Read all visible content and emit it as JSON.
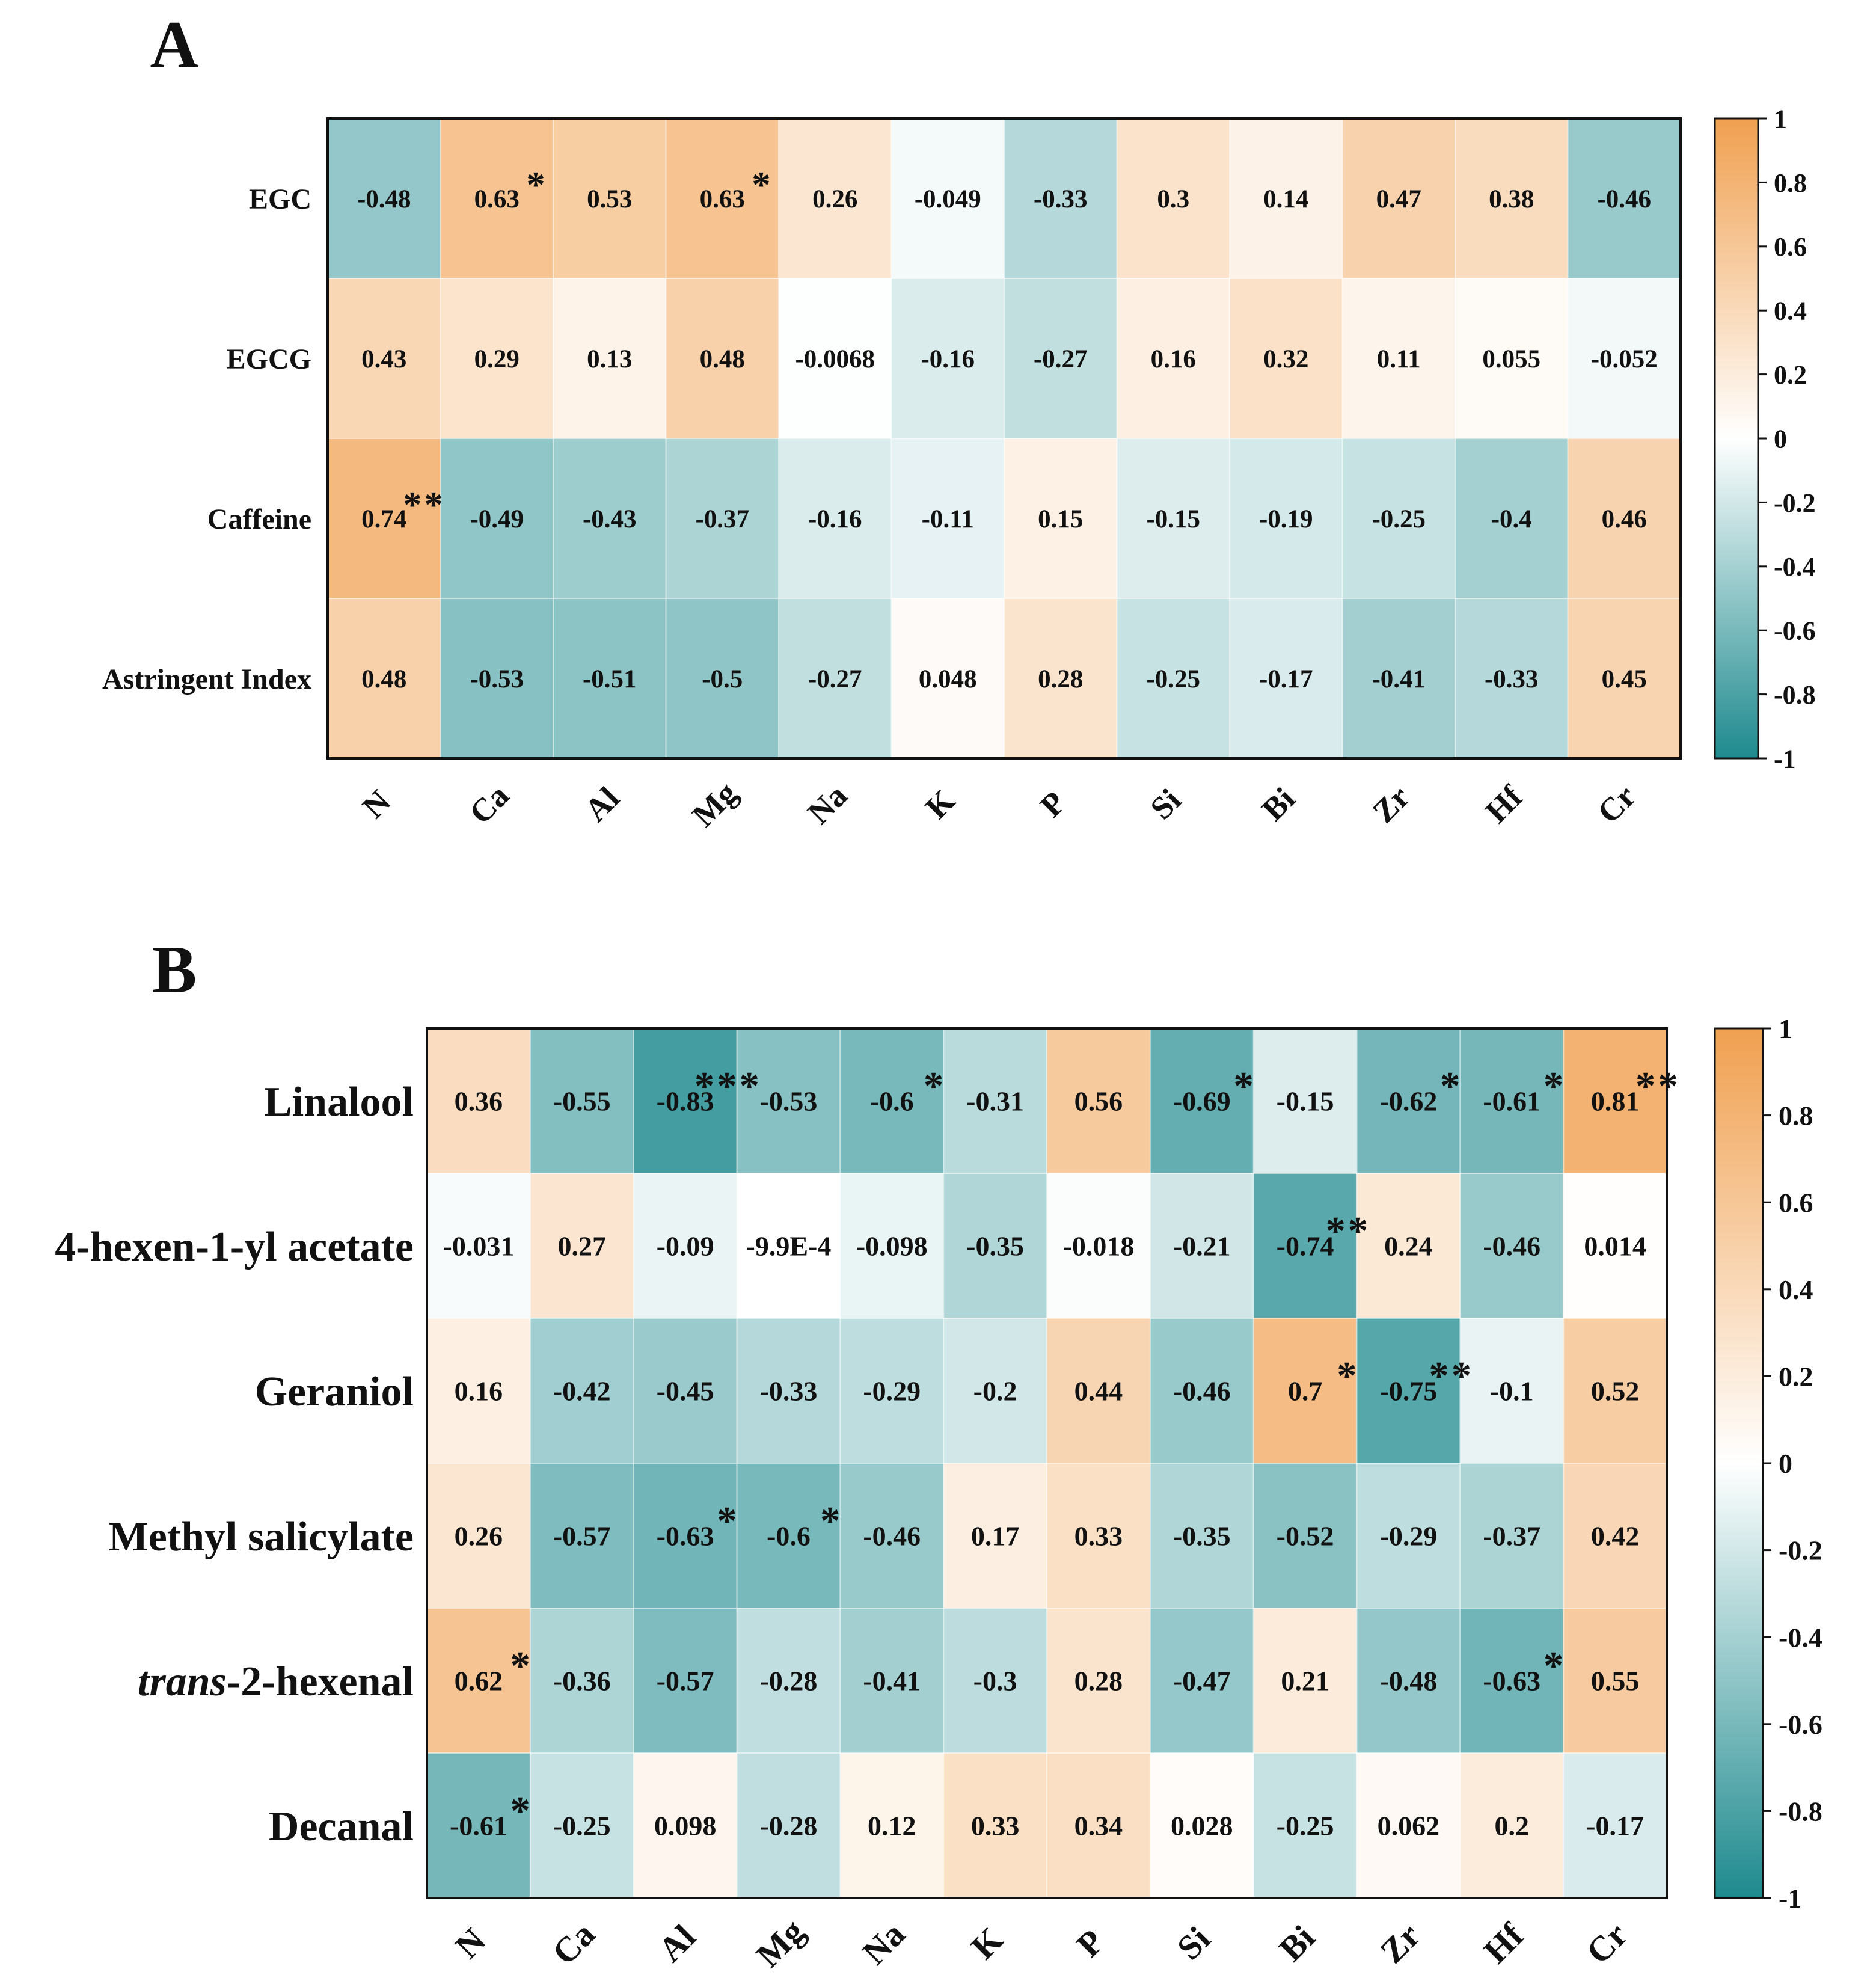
{
  "chart_data": [
    {
      "type": "heatmap",
      "panel_label": "A",
      "columns": [
        "N",
        "Ca",
        "Al",
        "Mg",
        "Na",
        "K",
        "P",
        "Si",
        "Bi",
        "Zr",
        "Hf",
        "Cr"
      ],
      "rows": [
        {
          "label": "EGC",
          "italic_prefix": "",
          "values": [
            -0.48,
            0.63,
            0.53,
            0.63,
            0.26,
            -0.049,
            -0.33,
            0.3,
            0.14,
            0.47,
            0.38,
            -0.46
          ],
          "labels": [
            "-0.48",
            "0.63",
            "0.53",
            "0.63",
            "0.26",
            "-0.049",
            "-0.33",
            "0.3",
            "0.14",
            "0.47",
            "0.38",
            "-0.46"
          ],
          "stars": [
            "",
            "*",
            "",
            "*",
            "",
            "",
            "",
            "",
            "",
            "",
            "",
            ""
          ]
        },
        {
          "label": "EGCG",
          "italic_prefix": "",
          "values": [
            0.43,
            0.29,
            0.13,
            0.48,
            -0.0068,
            -0.16,
            -0.27,
            0.16,
            0.32,
            0.11,
            0.055,
            -0.052
          ],
          "labels": [
            "0.43",
            "0.29",
            "0.13",
            "0.48",
            "-0.0068",
            "-0.16",
            "-0.27",
            "0.16",
            "0.32",
            "0.11",
            "0.055",
            "-0.052"
          ],
          "stars": [
            "",
            "",
            "",
            "",
            "",
            "",
            "",
            "",
            "",
            "",
            "",
            ""
          ]
        },
        {
          "label": "Caffeine",
          "italic_prefix": "",
          "values": [
            0.74,
            -0.49,
            -0.43,
            -0.37,
            -0.16,
            -0.11,
            0.15,
            -0.15,
            -0.19,
            -0.25,
            -0.4,
            0.46
          ],
          "labels": [
            "0.74",
            "-0.49",
            "-0.43",
            "-0.37",
            "-0.16",
            "-0.11",
            "0.15",
            "-0.15",
            "-0.19",
            "-0.25",
            "-0.4",
            "0.46"
          ],
          "stars": [
            "**",
            "",
            "",
            "",
            "",
            "",
            "",
            "",
            "",
            "",
            "",
            ""
          ]
        },
        {
          "label": "Astringent Index",
          "italic_prefix": "",
          "values": [
            0.48,
            -0.53,
            -0.51,
            -0.5,
            -0.27,
            0.048,
            0.28,
            -0.25,
            -0.17,
            -0.41,
            -0.33,
            0.45
          ],
          "labels": [
            "0.48",
            "-0.53",
            "-0.51",
            "-0.5",
            "-0.27",
            "0.048",
            "0.28",
            "-0.25",
            "-0.17",
            "-0.41",
            "-0.33",
            "0.45"
          ],
          "stars": [
            "",
            "",
            "",
            "",
            "",
            "",
            "",
            "",
            "",
            "",
            "",
            ""
          ]
        }
      ],
      "colorbar": {
        "range": [
          -1,
          1
        ],
        "ticks": [
          "1",
          "0.8",
          "0.6",
          "0.4",
          "0.2",
          "0",
          "-0.2",
          "-0.4",
          "-0.6",
          "-0.8",
          "-1"
        ]
      }
    },
    {
      "type": "heatmap",
      "panel_label": "B",
      "columns": [
        "N",
        "Ca",
        "Al",
        "Mg",
        "Na",
        "K",
        "P",
        "Si",
        "Bi",
        "Zr",
        "Hf",
        "Cr"
      ],
      "rows": [
        {
          "label": "Linalool",
          "italic_prefix": "",
          "values": [
            0.36,
            -0.55,
            -0.83,
            -0.53,
            -0.6,
            -0.31,
            0.56,
            -0.69,
            -0.15,
            -0.62,
            -0.61,
            0.81
          ],
          "labels": [
            "0.36",
            "-0.55",
            "-0.83",
            "-0.53",
            "-0.6",
            "-0.31",
            "0.56",
            "-0.69",
            "-0.15",
            "-0.62",
            "-0.61",
            "0.81"
          ],
          "stars": [
            "",
            "",
            "***",
            "",
            "*",
            "",
            "",
            "*",
            "",
            "*",
            "*",
            "**"
          ]
        },
        {
          "label": "4-hexen-1-yl acetate",
          "italic_prefix": "",
          "values": [
            -0.031,
            0.27,
            -0.09,
            -0.00099,
            -0.098,
            -0.35,
            -0.018,
            -0.21,
            -0.74,
            0.24,
            -0.46,
            0.014
          ],
          "labels": [
            "-0.031",
            "0.27",
            "-0.09",
            "-9.9E-4",
            "-0.098",
            "-0.35",
            "-0.018",
            "-0.21",
            "-0.74",
            "0.24",
            "-0.46",
            "0.014"
          ],
          "stars": [
            "",
            "",
            "",
            "",
            "",
            "",
            "",
            "",
            "**",
            "",
            "",
            ""
          ]
        },
        {
          "label": "Geraniol",
          "italic_prefix": "",
          "values": [
            0.16,
            -0.42,
            -0.45,
            -0.33,
            -0.29,
            -0.2,
            0.44,
            -0.46,
            0.7,
            -0.75,
            -0.1,
            0.52
          ],
          "labels": [
            "0.16",
            "-0.42",
            "-0.45",
            "-0.33",
            "-0.29",
            "-0.2",
            "0.44",
            "-0.46",
            "0.7",
            "-0.75",
            "-0.1",
            "0.52"
          ],
          "stars": [
            "",
            "",
            "",
            "",
            "",
            "",
            "",
            "",
            "*",
            "**",
            "",
            ""
          ]
        },
        {
          "label": "Methyl salicylate",
          "italic_prefix": "",
          "values": [
            0.26,
            -0.57,
            -0.63,
            -0.6,
            -0.46,
            0.17,
            0.33,
            -0.35,
            -0.52,
            -0.29,
            -0.37,
            0.42
          ],
          "labels": [
            "0.26",
            "-0.57",
            "-0.63",
            "-0.6",
            "-0.46",
            "0.17",
            "0.33",
            "-0.35",
            "-0.52",
            "-0.29",
            "-0.37",
            "0.42"
          ],
          "stars": [
            "",
            "",
            "*",
            "*",
            "",
            "",
            "",
            "",
            "",
            "",
            "",
            ""
          ]
        },
        {
          "label": "-2-hexenal",
          "italic_prefix": "trans",
          "values": [
            0.62,
            -0.36,
            -0.57,
            -0.28,
            -0.41,
            -0.3,
            0.28,
            -0.47,
            0.21,
            -0.48,
            -0.63,
            0.55
          ],
          "labels": [
            "0.62",
            "-0.36",
            "-0.57",
            "-0.28",
            "-0.41",
            "-0.3",
            "0.28",
            "-0.47",
            "0.21",
            "-0.48",
            "-0.63",
            "0.55"
          ],
          "stars": [
            "*",
            "",
            "",
            "",
            "",
            "",
            "",
            "",
            "",
            "",
            "*",
            ""
          ]
        },
        {
          "label": "Decanal",
          "italic_prefix": "",
          "values": [
            -0.61,
            -0.25,
            0.098,
            -0.28,
            0.12,
            0.33,
            0.34,
            0.028,
            -0.25,
            0.062,
            0.2,
            -0.17
          ],
          "labels": [
            "-0.61",
            "-0.25",
            "0.098",
            "-0.28",
            "0.12",
            "0.33",
            "0.34",
            "0.028",
            "-0.25",
            "0.062",
            "0.2",
            "-0.17"
          ],
          "stars": [
            "*",
            "",
            "",
            "",
            "",
            "",
            "",
            "",
            "",
            "",
            "",
            ""
          ]
        }
      ],
      "colorbar": {
        "range": [
          -1,
          1
        ],
        "ticks": [
          "1",
          "0.8",
          "0.6",
          "0.4",
          "0.2",
          "0",
          "-0.2",
          "-0.4",
          "-0.6",
          "-0.8",
          "-1"
        ]
      }
    }
  ],
  "colors": {
    "positive": "#f0a050",
    "zero": "#ffffff",
    "negative": "#1e8a8e"
  }
}
